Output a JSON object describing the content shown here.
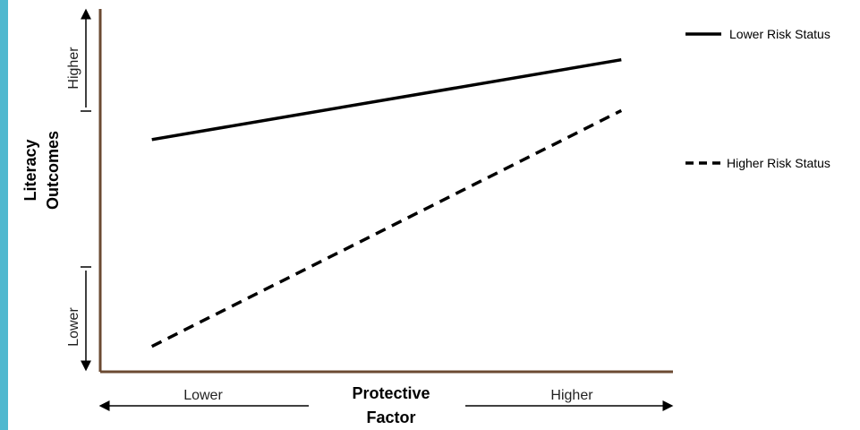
{
  "colors": {
    "side_strip": "#4fb8cf",
    "axis": "#6b4a32",
    "line": "#000000"
  },
  "chart_data": {
    "type": "line",
    "title": "",
    "xlabel": "Protective Factor",
    "ylabel": "Literacy Outcomes",
    "x_tick_labels": [
      "Lower",
      "Higher"
    ],
    "y_tick_labels": [
      "Lower",
      "Higher"
    ],
    "x": [
      0,
      1
    ],
    "xlim": [
      -0.11,
      1.11
    ],
    "ylim": [
      0,
      1
    ],
    "grid": false,
    "legend_position": "right",
    "series": [
      {
        "name": "Lower Risk Status",
        "style": "solid",
        "values": [
          0.64,
          0.86
        ]
      },
      {
        "name": "Higher Risk Status",
        "style": "dashed",
        "values": [
          0.07,
          0.72
        ]
      }
    ]
  }
}
